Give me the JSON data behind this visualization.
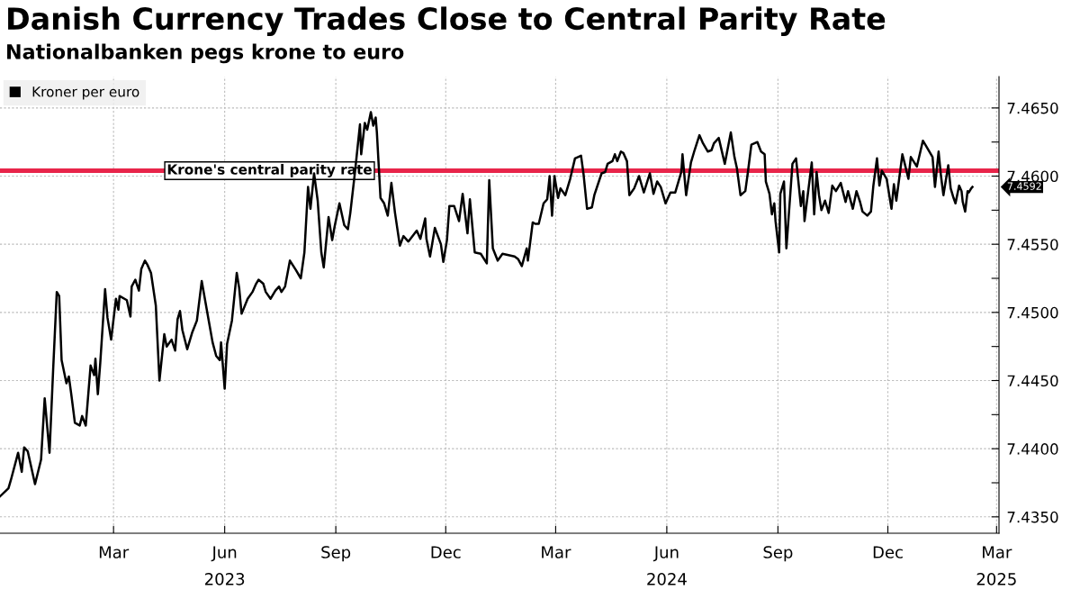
{
  "chart_data": {
    "type": "line",
    "title": "Danish Currency Trades Close to Central Parity Rate",
    "subtitle": "Nationalbanken pegs krone to euro",
    "x": [
      "2022-11-27",
      "2022-12-04",
      "2022-12-06",
      "2022-12-12",
      "2022-12-15",
      "2022-12-17",
      "2022-12-20",
      "2022-12-26",
      "2022-12-31",
      "2023-01-03",
      "2023-01-07",
      "2023-01-10",
      "2023-01-13",
      "2023-01-15",
      "2023-01-17",
      "2023-01-21",
      "2023-01-23",
      "2023-01-25",
      "2023-01-28",
      "2023-02-01",
      "2023-02-03",
      "2023-02-06",
      "2023-02-10",
      "2023-02-13",
      "2023-02-14",
      "2023-02-16",
      "2023-02-18",
      "2023-02-22",
      "2023-02-24",
      "2023-02-27",
      "2023-03-03",
      "2023-03-05",
      "2023-03-06",
      "2023-03-12",
      "2023-03-15",
      "2023-03-16",
      "2023-03-19",
      "2023-03-22",
      "2023-03-24",
      "2023-03-27",
      "2023-03-29",
      "2023-04-01",
      "2023-04-05",
      "2023-04-08",
      "2023-04-12",
      "2023-04-14",
      "2023-04-18",
      "2023-04-21",
      "2023-04-23",
      "2023-04-25",
      "2023-04-27",
      "2023-05-01",
      "2023-05-05",
      "2023-05-09",
      "2023-05-13",
      "2023-05-15",
      "2023-05-19",
      "2023-05-22",
      "2023-05-25",
      "2023-05-28",
      "2023-05-29",
      "2023-06-01",
      "2023-06-03",
      "2023-06-07",
      "2023-06-11",
      "2023-06-13",
      "2023-06-15",
      "2023-06-20",
      "2023-06-24",
      "2023-06-27",
      "2023-06-29",
      "2023-07-03",
      "2023-07-05",
      "2023-07-09",
      "2023-07-13",
      "2023-07-16",
      "2023-07-18",
      "2023-07-21",
      "2023-07-25",
      "2023-07-30",
      "2023-08-03",
      "2023-08-06",
      "2023-08-09",
      "2023-08-11",
      "2023-08-14",
      "2023-08-17",
      "2023-08-20",
      "2023-08-22",
      "2023-08-26",
      "2023-08-29",
      "2023-08-31",
      "2023-09-04",
      "2023-09-08",
      "2023-09-11",
      "2023-09-13",
      "2023-09-17",
      "2023-09-21",
      "2023-09-22",
      "2023-09-25",
      "2023-09-27",
      "2023-09-30",
      "2023-10-02",
      "2023-10-04",
      "2023-10-05",
      "2023-10-08",
      "2023-10-11",
      "2023-10-14",
      "2023-10-17",
      "2023-10-20",
      "2023-10-24",
      "2023-10-27",
      "2023-10-31",
      "2023-11-07",
      "2023-11-10",
      "2023-11-14",
      "2023-11-15",
      "2023-11-18",
      "2023-11-22",
      "2023-11-27",
      "2023-11-29",
      "2023-12-02",
      "2023-12-04",
      "2023-12-08",
      "2023-12-12",
      "2023-12-15",
      "2023-12-19",
      "2023-12-21",
      "2023-12-25",
      "2023-12-30",
      "2024-01-04",
      "2024-01-06",
      "2024-01-09",
      "2024-01-13",
      "2024-01-17",
      "2024-01-22",
      "2024-01-27",
      "2024-01-30",
      "2024-02-02",
      "2024-02-06",
      "2024-02-07",
      "2024-02-11",
      "2024-02-13",
      "2024-02-16",
      "2024-02-20",
      "2024-02-23",
      "2024-02-25",
      "2024-02-27",
      "2024-02-29",
      "2024-03-03",
      "2024-03-05",
      "2024-03-09",
      "2024-03-13",
      "2024-03-17",
      "2024-03-22",
      "2024-03-24",
      "2024-03-27",
      "2024-03-31",
      "2024-04-02",
      "2024-04-08",
      "2024-04-11",
      "2024-04-13",
      "2024-04-17",
      "2024-04-19",
      "2024-04-21",
      "2024-04-24",
      "2024-04-26",
      "2024-04-29",
      "2024-05-01",
      "2024-05-05",
      "2024-05-09",
      "2024-05-13",
      "2024-05-18",
      "2024-05-21",
      "2024-05-24",
      "2024-05-27",
      "2024-05-31",
      "2024-06-04",
      "2024-06-08",
      "2024-06-13",
      "2024-06-14",
      "2024-06-17",
      "2024-06-21",
      "2024-06-24",
      "2024-06-28",
      "2024-07-01",
      "2024-07-05",
      "2024-07-08",
      "2024-07-10",
      "2024-07-14",
      "2024-07-19",
      "2024-07-24",
      "2024-07-27",
      "2024-07-29",
      "2024-08-01",
      "2024-08-05",
      "2024-08-07",
      "2024-08-10",
      "2024-08-15",
      "2024-08-18",
      "2024-08-21",
      "2024-08-22",
      "2024-08-25",
      "2024-08-27",
      "2024-08-29",
      "2024-08-30",
      "2024-09-02",
      "2024-09-03",
      "2024-09-06",
      "2024-09-08",
      "2024-09-11",
      "2024-09-13",
      "2024-09-16",
      "2024-09-20",
      "2024-09-22",
      "2024-09-23",
      "2024-09-29",
      "2024-10-01",
      "2024-10-03",
      "2024-10-05",
      "2024-10-07",
      "2024-10-10",
      "2024-10-13",
      "2024-10-16",
      "2024-10-19",
      "2024-10-23",
      "2024-10-27",
      "2024-10-29",
      "2024-11-02",
      "2024-11-05",
      "2024-11-08",
      "2024-11-10",
      "2024-11-14",
      "2024-11-17",
      "2024-11-19",
      "2024-11-22",
      "2024-11-24",
      "2024-11-26",
      "2024-11-30",
      "2024-12-04",
      "2024-12-06",
      "2024-12-08",
      "2024-12-13",
      "2024-12-15",
      "2024-12-18",
      "2024-12-20",
      "2024-12-25",
      "2024-12-30",
      "2025-01-01",
      "2025-01-07",
      "2025-01-09",
      "2025-01-12",
      "2025-01-14",
      "2025-01-16",
      "2025-01-20",
      "2025-01-22",
      "2025-01-24",
      "2025-01-26",
      "2025-01-29",
      "2025-01-31",
      "2025-02-01",
      "2025-02-03",
      "2025-02-05",
      "2025-02-06",
      "2025-02-08",
      "2025-02-09"
    ],
    "series": [
      {
        "name": "Kroner per euro",
        "color": "#000000",
        "values": [
          7.4365,
          7.4371,
          7.4377,
          7.4397,
          7.4383,
          7.4401,
          7.4398,
          7.4374,
          7.4392,
          7.4437,
          7.4397,
          7.4458,
          7.4515,
          7.4512,
          7.4465,
          7.4448,
          7.4453,
          7.444,
          7.4419,
          7.4417,
          7.4424,
          7.4417,
          7.4461,
          7.4454,
          7.4466,
          7.444,
          7.4463,
          7.4517,
          7.4496,
          7.448,
          7.451,
          7.4502,
          7.4512,
          7.4509,
          7.4497,
          7.4519,
          7.4524,
          7.4516,
          7.4532,
          7.4538,
          7.4535,
          7.4529,
          7.4505,
          7.445,
          7.4484,
          7.4475,
          7.448,
          7.4472,
          7.4495,
          7.4501,
          7.4487,
          7.4473,
          7.4485,
          7.4494,
          7.4523,
          7.4513,
          7.4493,
          7.4478,
          7.4468,
          7.4465,
          7.4478,
          7.4444,
          7.4477,
          7.4494,
          7.4529,
          7.4518,
          7.4499,
          7.451,
          7.4515,
          7.4521,
          7.4524,
          7.4521,
          7.4515,
          7.451,
          7.4516,
          7.4519,
          7.4515,
          7.4519,
          7.4538,
          7.4531,
          7.4525,
          7.4544,
          7.4592,
          7.4576,
          7.4602,
          7.4582,
          7.4544,
          7.4533,
          7.457,
          7.4553,
          7.4563,
          7.458,
          7.4564,
          7.4561,
          7.4573,
          7.4604,
          7.4638,
          7.4616,
          7.4639,
          7.4634,
          7.4647,
          7.4637,
          7.4643,
          7.4632,
          7.4584,
          7.458,
          7.4571,
          7.4595,
          7.4573,
          7.4549,
          7.4556,
          7.4552,
          7.456,
          7.4554,
          7.4569,
          7.4554,
          7.4541,
          7.4562,
          7.455,
          7.4537,
          7.4553,
          7.4578,
          7.4578,
          7.4567,
          7.4587,
          7.4558,
          7.4583,
          7.4544,
          7.4543,
          7.4536,
          7.4597,
          7.4547,
          7.4538,
          7.4543,
          7.4542,
          7.4541,
          7.4539,
          7.4534,
          7.4547,
          7.4538,
          7.4566,
          7.4565,
          7.4565,
          7.458,
          7.4583,
          7.46,
          7.4571,
          7.46,
          7.4584,
          7.4591,
          7.4586,
          7.4598,
          7.4613,
          7.4615,
          7.4602,
          7.4576,
          7.4577,
          7.4586,
          7.4602,
          7.4603,
          7.4609,
          7.4611,
          7.4616,
          7.4611,
          7.4618,
          7.4617,
          7.4611,
          7.4586,
          7.4591,
          7.46,
          7.4588,
          7.4602,
          7.4587,
          7.4596,
          7.4592,
          7.458,
          7.4588,
          7.4588,
          7.4603,
          7.4616,
          7.4586,
          7.461,
          7.4619,
          7.463,
          7.4624,
          7.4618,
          7.4619,
          7.4624,
          7.4628,
          7.4609,
          7.4632,
          7.4614,
          7.4606,
          7.4586,
          7.4589,
          7.4602,
          7.4623,
          7.4625,
          7.4618,
          7.4616,
          7.4596,
          7.4587,
          7.4572,
          7.458,
          7.4567,
          7.4544,
          7.4587,
          7.4596,
          7.4547,
          7.4584,
          7.4609,
          7.4613,
          7.4578,
          7.4589,
          7.4567,
          7.461,
          7.4572,
          7.4603,
          7.4586,
          7.4575,
          7.4582,
          7.4573,
          7.4593,
          7.4589,
          7.4595,
          7.4581,
          7.4589,
          7.4576,
          7.4589,
          7.4581,
          7.4574,
          7.4571,
          7.4574,
          7.4593,
          7.4613,
          7.4593,
          7.4604,
          7.4598,
          7.4576,
          7.4594,
          7.4582,
          7.4616,
          7.4609,
          7.4598,
          7.4614,
          7.4607,
          7.4626,
          7.4623,
          7.4614,
          7.4592,
          7.4618,
          7.46,
          7.4586,
          7.4608,
          7.4591,
          7.4585,
          7.458,
          7.4593,
          7.4589,
          7.4581,
          7.4574,
          7.4589,
          7.4588,
          7.4591,
          7.4592
        ]
      }
    ],
    "ylim": [
      7.4338,
      7.4673
    ],
    "yticks": [
      {
        "value": 7.435,
        "label": "7.4350"
      },
      {
        "value": 7.4375,
        "label": null
      },
      {
        "value": 7.44,
        "label": "7.4400"
      },
      {
        "value": 7.4425,
        "label": null
      },
      {
        "value": 7.445,
        "label": "7.4450"
      },
      {
        "value": 7.4475,
        "label": null
      },
      {
        "value": 7.45,
        "label": "7.4500"
      },
      {
        "value": 7.4525,
        "label": null
      },
      {
        "value": 7.455,
        "label": "7.4550"
      },
      {
        "value": 7.4575,
        "label": null
      },
      {
        "value": 7.46,
        "label": "7.4600"
      },
      {
        "value": 7.4625,
        "label": null
      },
      {
        "value": 7.465,
        "label": "7.4650"
      }
    ],
    "xlim": [
      "2022-11-27",
      "2025-03-03"
    ],
    "xticks": [
      {
        "value": "2023-03-01",
        "label": "Mar"
      },
      {
        "value": "2023-06-01",
        "label": "Jun\n2023"
      },
      {
        "value": "2023-09-01",
        "label": "Sep"
      },
      {
        "value": "2023-12-01",
        "label": "Dec"
      },
      {
        "value": "2024-03-01",
        "label": "Mar"
      },
      {
        "value": "2024-06-01",
        "label": "Jun\n2024"
      },
      {
        "value": "2024-09-01",
        "label": "Sep"
      },
      {
        "value": "2024-12-01",
        "label": "Dec"
      },
      {
        "value": "2025-03-01",
        "label": "Mar\n2025"
      }
    ],
    "ref_lines": [
      {
        "axis": "y",
        "value": 7.4604,
        "label": "Krone's central parity rate",
        "color": "#e8254a"
      }
    ],
    "annotations": [
      "7.4592"
    ],
    "grid": true,
    "legend": "top left",
    "marker": "none",
    "line_style": "solid"
  }
}
